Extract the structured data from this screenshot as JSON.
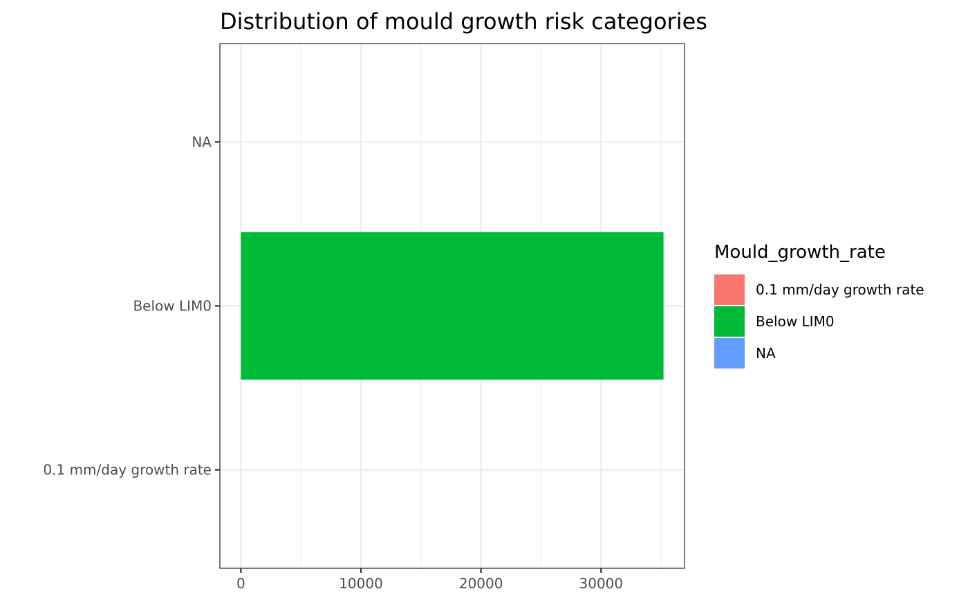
{
  "chart_data": {
    "type": "bar",
    "orientation": "horizontal",
    "title": "Distribution of mould growth risk categories",
    "xlabel": "",
    "ylabel": "",
    "categories": [
      "0.1 mm/day growth rate",
      "Below LIM0",
      "NA"
    ],
    "values": [
      0,
      35200,
      0
    ],
    "xlim": [
      -1750,
      36950
    ],
    "x_ticks": [
      0,
      10000,
      20000,
      30000
    ],
    "x_tick_labels": [
      "0",
      "10000",
      "20000",
      "30000"
    ],
    "grid": true,
    "legend": {
      "title": "Mould_growth_rate",
      "placement": "right",
      "entries": [
        {
          "label": "0.1 mm/day growth rate",
          "color": "#F8766D"
        },
        {
          "label": "Below LIM0",
          "color": "#00BA38"
        },
        {
          "label": "NA",
          "color": "#619CFF"
        }
      ]
    }
  }
}
